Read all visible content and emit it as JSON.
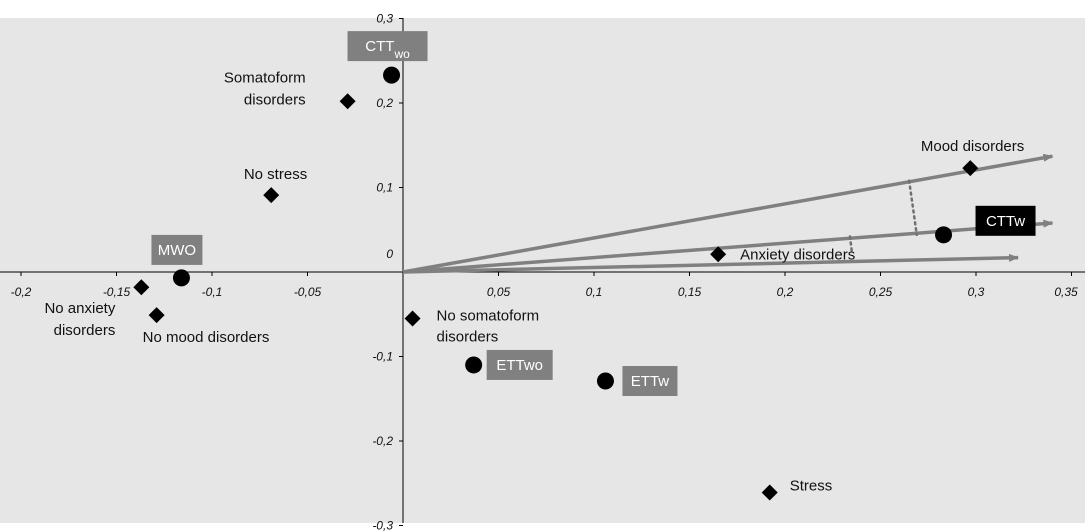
{
  "chart_data": {
    "type": "scatter",
    "title": "",
    "xlabel": "",
    "ylabel": "",
    "xlim": [
      -0.2,
      0.35
    ],
    "ylim": [
      -0.3,
      0.3
    ],
    "grid": false,
    "background": "#e6e6e6",
    "x_ticks": [
      "-0,2",
      "-0,15",
      "-0,1",
      "-0,05",
      "0",
      "0,05",
      "0,1",
      "0,15",
      "0,2",
      "0,25",
      "0,3",
      "0,35"
    ],
    "y_ticks": [
      "-0,3",
      "-0,2",
      "-0,1",
      "0",
      "0,1",
      "0,2",
      "0,3"
    ],
    "series": [
      {
        "marker": "diamond",
        "points": [
          {
            "label": "Somatoform disorders",
            "x": -0.029,
            "y": 0.202
          },
          {
            "label": "No stress",
            "x": -0.069,
            "y": 0.091
          },
          {
            "label": "Mood disorders",
            "x": 0.297,
            "y": 0.123
          },
          {
            "label": "Anxiety disorders",
            "x": 0.165,
            "y": 0.021
          },
          {
            "label": "No anxiety disorders",
            "x": -0.137,
            "y": -0.018
          },
          {
            "label": "No mood disorders",
            "x": -0.129,
            "y": -0.051
          },
          {
            "label": "No somatoform disorders",
            "x": 0.005,
            "y": -0.055
          },
          {
            "label": "Stress",
            "x": 0.192,
            "y": -0.261
          }
        ]
      },
      {
        "marker": "circle",
        "points": [
          {
            "label": "CTTwo",
            "x": -0.006,
            "y": 0.233,
            "box": "gray"
          },
          {
            "label": "MWO",
            "x": -0.116,
            "y": -0.007,
            "box": "gray"
          },
          {
            "label": "CTTw",
            "x": 0.283,
            "y": 0.044,
            "box": "black"
          },
          {
            "label": "ETTwo",
            "x": 0.037,
            "y": -0.11,
            "box": "gray"
          },
          {
            "label": "ETTw",
            "x": 0.106,
            "y": -0.129,
            "box": "gray"
          }
        ]
      }
    ],
    "arrows": [
      {
        "from": [
          0,
          0
        ],
        "to": [
          0.34,
          0.137
        ]
      },
      {
        "from": [
          0,
          0
        ],
        "to": [
          0.34,
          0.058
        ]
      },
      {
        "from": [
          0,
          0
        ],
        "to": [
          0.322,
          0.017
        ]
      }
    ],
    "dotted_connectors": [
      {
        "from": [
          0.265,
          0.108
        ],
        "to": [
          0.269,
          0.044
        ]
      },
      {
        "from": [
          0.234,
          0.042
        ],
        "to": [
          0.235,
          0.024
        ]
      }
    ],
    "colors": {
      "arrow": "#808080",
      "label_box_gray": "#808080",
      "label_box_black": "#000000",
      "marker": "#000000"
    }
  }
}
